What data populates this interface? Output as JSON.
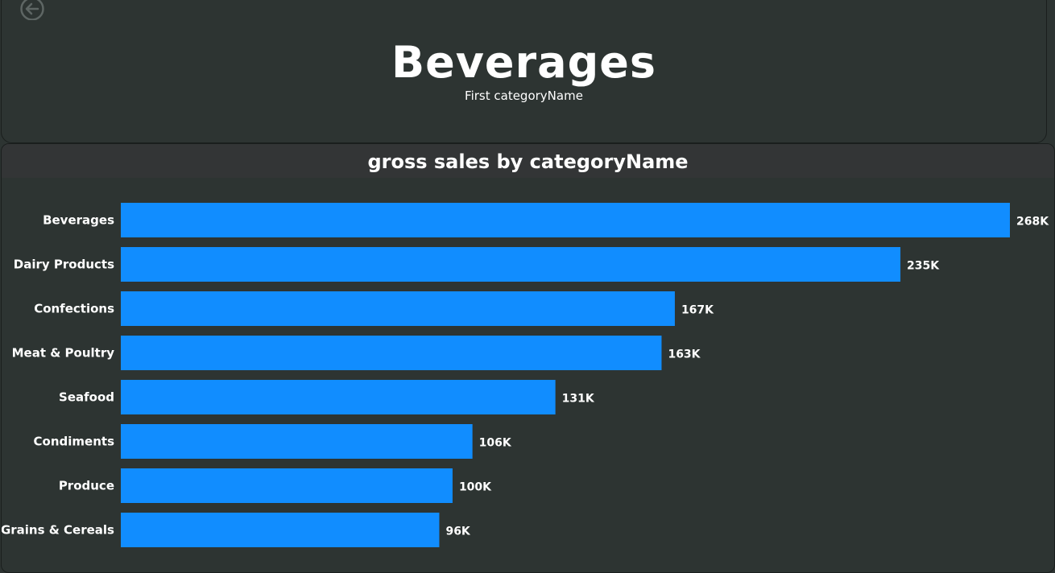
{
  "kpi": {
    "value": "Beverages",
    "label": "First categoryName"
  },
  "icons": {
    "back": "back-arrow-circle-icon"
  },
  "colors": {
    "background": "#2d3432",
    "header": "#333536",
    "bar": "#118dff",
    "text": "#ffffff"
  },
  "chart_data": {
    "type": "bar",
    "orientation": "horizontal",
    "title": "gross sales by categoryName",
    "categories": [
      "Beverages",
      "Dairy Products",
      "Confections",
      "Meat & Poultry",
      "Seafood",
      "Condiments",
      "Produce",
      "Grains & Cereals"
    ],
    "values": [
      268000,
      235000,
      167000,
      163000,
      131000,
      106000,
      100000,
      96000
    ],
    "data_labels": [
      "268K",
      "235K",
      "167K",
      "163K",
      "131K",
      "106K",
      "100K",
      "96K"
    ],
    "xlim": [
      0,
      268000
    ],
    "grid": false,
    "legend": false
  }
}
